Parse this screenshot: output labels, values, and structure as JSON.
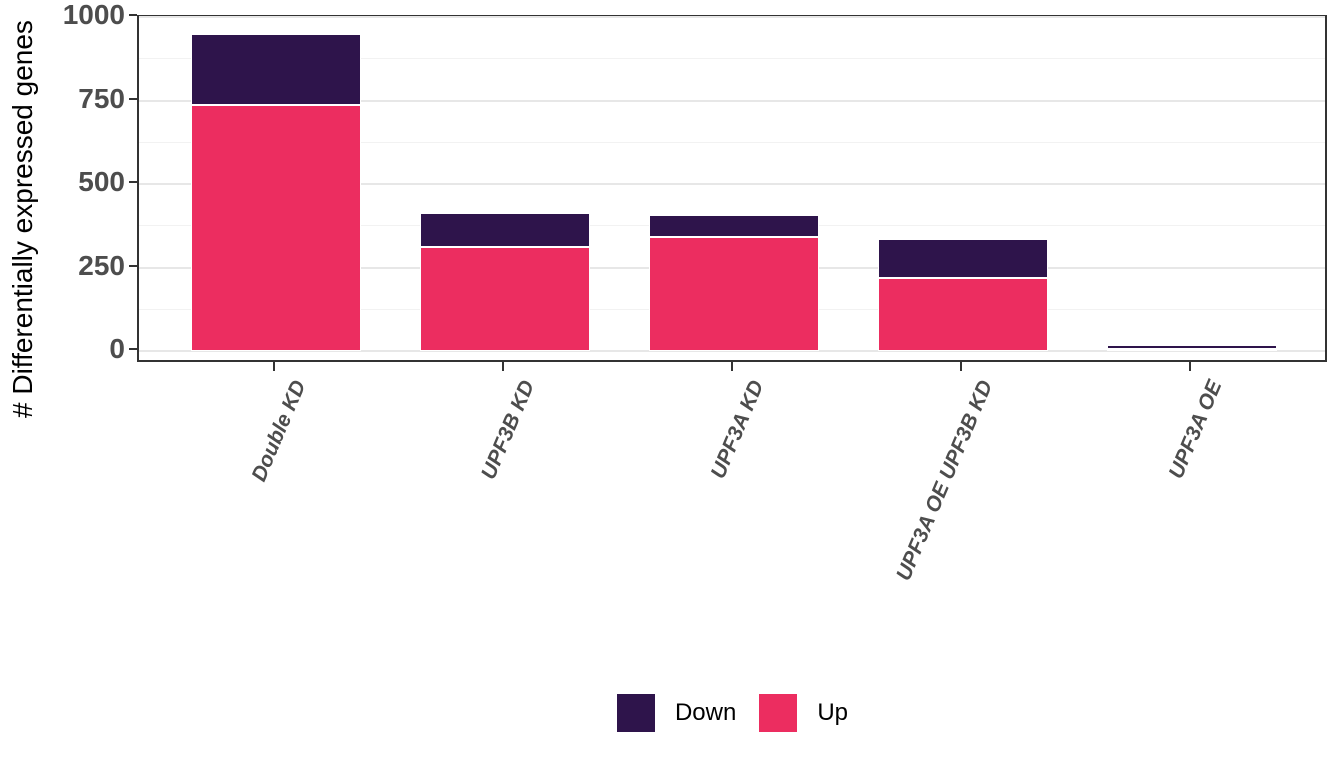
{
  "chart_data": {
    "type": "bar",
    "stacked": true,
    "title": "",
    "xlabel": "",
    "ylabel": "# Differentially expressed genes",
    "categories": [
      "Double KD",
      "UPF3B KD",
      "UPF3A KD",
      "UPF3A OE UPF3B KD",
      "UPF3A OE"
    ],
    "series": [
      {
        "name": "Up",
        "color": "#EC2D60",
        "values": [
          735,
          310,
          340,
          218,
          3
        ]
      },
      {
        "name": "Down",
        "color": "#2E144B",
        "values": [
          215,
          102,
          67,
          117,
          16
        ]
      }
    ],
    "stack_order_bottom_to_top": [
      "Up",
      "Down"
    ],
    "totals": [
      950,
      412,
      407,
      335,
      19
    ],
    "ylim": [
      0,
      1000
    ],
    "yticks": [
      0,
      250,
      500,
      750,
      1000
    ],
    "ytick_labels": [
      "0",
      "250",
      "500",
      "750",
      "1000"
    ],
    "yticks_minor": [
      125,
      375,
      625,
      875
    ],
    "grid": true,
    "bar_outline_color": "#FFFFFF",
    "legend_position": "bottom",
    "legend": [
      {
        "label": "Down",
        "color": "#2E144B"
      },
      {
        "label": "Up",
        "color": "#EC2D60"
      }
    ]
  },
  "style": {
    "panel_border_color": "#333333",
    "axis_text_color": "#4d4d4d",
    "grid_major_color": "#e7e7e7",
    "grid_minor_color": "#f2f2f2",
    "background_color": "#ffffff"
  }
}
